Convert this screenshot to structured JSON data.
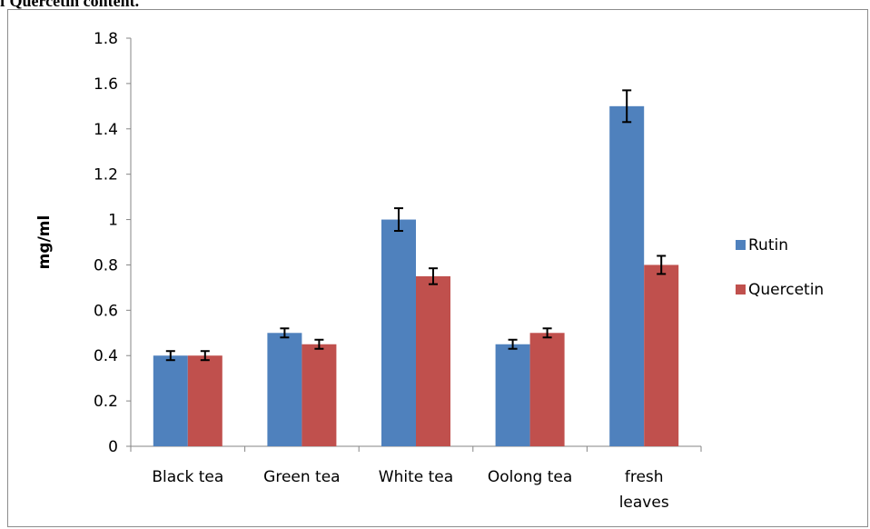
{
  "caption": "f Quercetin content.",
  "chart_data": {
    "type": "bar",
    "title": "",
    "xlabel": "",
    "ylabel": "mg/ml",
    "ylim": [
      0,
      1.8
    ],
    "yticks": [
      "0",
      "0.2",
      "0.4",
      "0.6",
      "0.8",
      "1",
      "1.2",
      "1.4",
      "1.6",
      "1.8"
    ],
    "categories": [
      [
        "Black tea"
      ],
      [
        "Green tea"
      ],
      [
        "White tea"
      ],
      [
        "Oolong tea"
      ],
      [
        "fresh",
        "leaves"
      ]
    ],
    "series": [
      {
        "name": "Rutin",
        "color": "#4f81bd",
        "values": [
          0.4,
          0.5,
          1.0,
          0.45,
          1.5
        ],
        "errors": [
          0.02,
          0.02,
          0.05,
          0.02,
          0.07
        ]
      },
      {
        "name": "Quercetin",
        "color": "#c0504d",
        "values": [
          0.4,
          0.45,
          0.75,
          0.5,
          0.8
        ],
        "errors": [
          0.02,
          0.02,
          0.035,
          0.02,
          0.04
        ]
      }
    ],
    "grid": false,
    "legend": "right"
  }
}
